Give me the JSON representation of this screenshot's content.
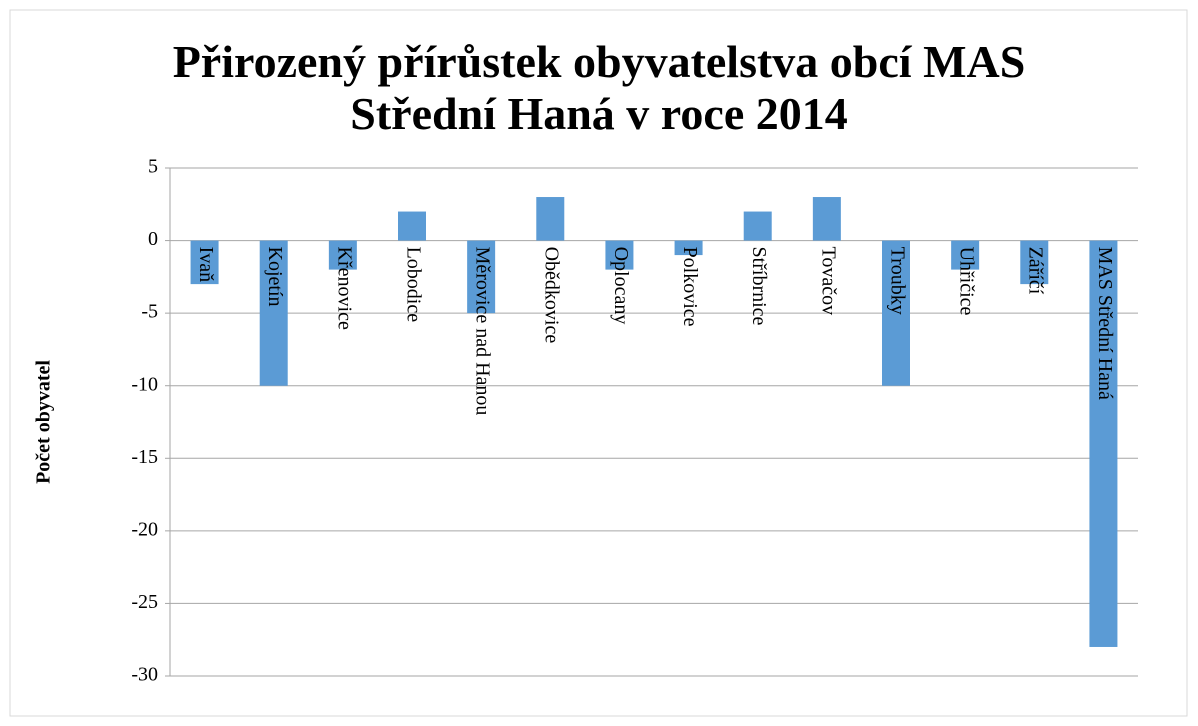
{
  "chart_data": {
    "type": "bar",
    "title": "Přirozený přírůstek obyvatelstva obcí MAS Střední Haná v roce 2014",
    "y_label": "Počet obyvatel",
    "categories": [
      "Ivaň",
      "Kojetín",
      "Křenovice",
      "Lobodice",
      "Měrovice nad Hanou",
      "Obědkovice",
      "Oplocany",
      "Polkovice",
      "Stříbrnice",
      "Tovačov",
      "Troubky",
      "Uhřičice",
      "Záříčí",
      "MAS Střední Haná"
    ],
    "values": [
      -3,
      -10,
      -2,
      2,
      -5,
      3,
      -2,
      -1,
      2,
      3,
      -10,
      -2,
      -3,
      -28
    ],
    "color": "#5b9bd5",
    "ylim": [
      -30,
      5
    ],
    "yticks": [
      -30,
      -25,
      -20,
      -15,
      -10,
      -5,
      0,
      5
    ],
    "grid": true
  }
}
